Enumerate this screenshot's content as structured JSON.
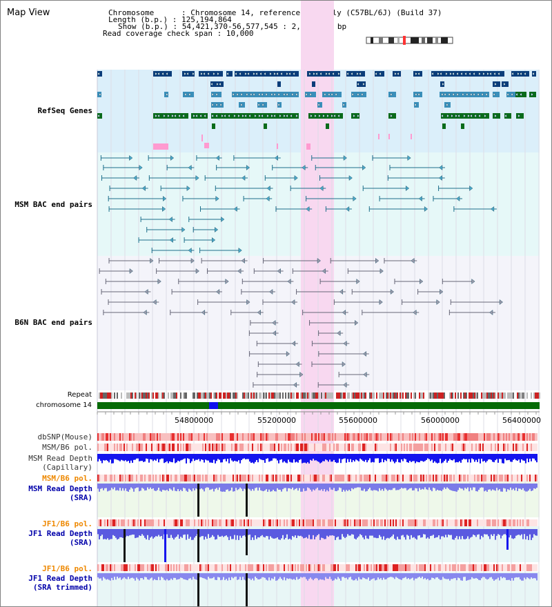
{
  "view_title": "Map View",
  "info": {
    "chromosome": "Chromosome      : Chromosome 14, reference assembly (C57BL/6J) (Build 37)",
    "length": "Length (b.p.) : 125,194,864",
    "show": "Show (b.p.) : 54,421,370-56,577,545 : 2,156,176 bp",
    "coverage": "Read coverage check span : 10,000"
  },
  "tracks": {
    "refseq": "RefSeq Genes",
    "msm_bac": "MSM BAC end pairs",
    "b6n_bac": "B6N BAC end pairs",
    "repeat": "Repeat",
    "chromosome": "chromosome 14",
    "dbsnp": "dbSNP(Mouse)",
    "msm_b6_pol": "MSM/B6 pol.",
    "msm_read_depth_cap_1": "MSM Read Depth",
    "msm_read_depth_cap_2": "(Capillary)",
    "msm_b6_pol_2": "MSM/B6 pol.",
    "msm_read_depth_sra_1": "MSM Read Depth",
    "msm_read_depth_sra_2": "(SRA)",
    "jf1_b6_pol": "JF1/B6 pol.",
    "jf1_read_depth_sra_1": "JF1 Read Depth",
    "jf1_read_depth_sra_2": "(SRA)",
    "jf1_b6_pol_2": "JF1/B6 pol.",
    "jf1_read_depth_trim_1": "JF1 Read Depth",
    "jf1_read_depth_trim_2": "(SRA trimmed)"
  },
  "axis": {
    "ticks": [
      "54800000",
      "55200000",
      "55600000",
      "56000000",
      "56400000"
    ]
  },
  "colors": {
    "refseq_bg": "#dbeffa",
    "msm_bg": "#e6f8f8",
    "b6n_bg": "#f4f4fa",
    "highlight": "#f8d8f0",
    "refseq_label": "#0000aa",
    "msm_label": "#006688",
    "b6n_label": "#444466",
    "orange_label": "#ee8800",
    "blue_label": "#0000aa"
  }
}
